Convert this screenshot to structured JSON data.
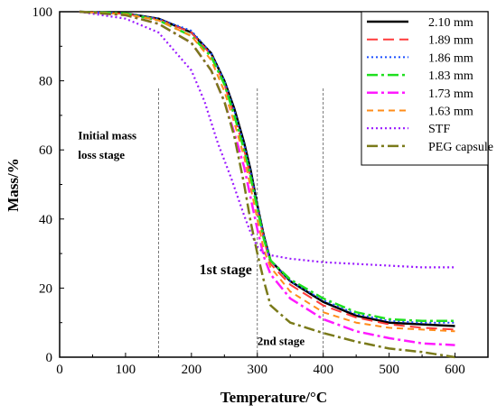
{
  "chart_data": {
    "type": "line",
    "xlabel": "Temperature/°C",
    "ylabel": "Mass/%",
    "xlim": [
      0,
      650
    ],
    "ylim": [
      0,
      100
    ],
    "xticks": [
      0,
      100,
      200,
      300,
      400,
      500,
      600
    ],
    "yticks": [
      0,
      20,
      40,
      60,
      80,
      100
    ],
    "legend_position": "top-right",
    "series": [
      {
        "name": "2.10 mm",
        "color": "#000000",
        "dash": "solid",
        "width": 2.5,
        "x": [
          30,
          100,
          150,
          200,
          230,
          250,
          265,
          280,
          290,
          300,
          310,
          320,
          350,
          400,
          450,
          500,
          550,
          600
        ],
        "y": [
          100,
          99.5,
          98,
          94,
          88,
          80,
          72,
          62,
          54,
          44,
          35,
          28,
          22,
          16,
          12,
          10,
          9.5,
          9
        ]
      },
      {
        "name": "1.89 mm",
        "color": "#ff3b3b",
        "dash": "12,6",
        "width": 2,
        "x": [
          30,
          100,
          150,
          200,
          230,
          250,
          265,
          280,
          290,
          300,
          310,
          320,
          350,
          400,
          450,
          500,
          550,
          600
        ],
        "y": [
          100,
          99.4,
          97.8,
          94,
          87.5,
          79,
          70,
          60,
          52,
          43,
          34,
          27,
          21,
          15,
          11.5,
          9.5,
          8.5,
          8
        ]
      },
      {
        "name": "1.86 mm",
        "color": "#1a4fff",
        "dash": "2,3",
        "width": 2,
        "x": [
          30,
          100,
          150,
          200,
          230,
          250,
          265,
          280,
          290,
          300,
          310,
          320,
          350,
          400,
          450,
          500,
          550,
          600
        ],
        "y": [
          100,
          99.5,
          98,
          94.5,
          88,
          80,
          71.5,
          61.5,
          53.5,
          44,
          35,
          28,
          22,
          16.5,
          12.5,
          10.5,
          10,
          10
        ]
      },
      {
        "name": "1.83 mm",
        "color": "#1fe01f",
        "dash": "12,4,3,4",
        "width": 2.5,
        "x": [
          30,
          100,
          150,
          200,
          230,
          250,
          265,
          280,
          290,
          300,
          310,
          320,
          350,
          400,
          450,
          500,
          550,
          600
        ],
        "y": [
          100,
          99.5,
          97.5,
          93,
          87,
          79,
          70,
          60,
          52,
          43,
          34,
          28,
          22.5,
          17,
          13,
          11,
          10.5,
          10.5
        ]
      },
      {
        "name": "1.73 mm",
        "color": "#ff1aff",
        "dash": "12,4,3,4",
        "width": 2.5,
        "x": [
          30,
          100,
          150,
          200,
          230,
          250,
          265,
          280,
          290,
          300,
          310,
          320,
          350,
          400,
          450,
          500,
          550,
          600
        ],
        "y": [
          100,
          99,
          96.5,
          91,
          83,
          74,
          65,
          55,
          46,
          37,
          29,
          24,
          17,
          11,
          7.5,
          5.5,
          4,
          3.5
        ]
      },
      {
        "name": "1.63 mm",
        "color": "#ff8c1a",
        "dash": "7,5",
        "width": 2,
        "x": [
          30,
          100,
          150,
          200,
          230,
          250,
          265,
          280,
          290,
          300,
          310,
          320,
          350,
          400,
          450,
          500,
          550,
          600
        ],
        "y": [
          100,
          99.3,
          97.5,
          93,
          86,
          77,
          68,
          58,
          49,
          40,
          31,
          26,
          19,
          13,
          10,
          8.5,
          8,
          7.5
        ]
      },
      {
        "name": "STF",
        "color": "#9a1aff",
        "dash": "2,3",
        "width": 2.2,
        "x": [
          30,
          100,
          150,
          200,
          220,
          240,
          260,
          280,
          290,
          300,
          310,
          320,
          350,
          400,
          450,
          500,
          550,
          600
        ],
        "y": [
          100,
          98,
          94,
          83,
          74,
          62,
          52,
          41,
          36,
          32,
          30,
          29.5,
          28.5,
          27.5,
          27,
          26.5,
          26,
          26
        ]
      },
      {
        "name": "PEG capsule",
        "color": "#7a7a1a",
        "dash": "12,4,3,4",
        "width": 2.5,
        "x": [
          30,
          100,
          150,
          200,
          230,
          250,
          265,
          280,
          290,
          300,
          310,
          320,
          350,
          400,
          450,
          500,
          550,
          600
        ],
        "y": [
          100,
          99,
          96.5,
          91,
          83,
          74,
          64,
          50,
          39,
          30,
          22,
          15,
          10,
          7,
          4.5,
          2.5,
          1.5,
          0
        ]
      }
    ],
    "annotations": [
      {
        "text": "Initial mass",
        "x": 28,
        "y": 63
      },
      {
        "text": "loss stage",
        "x": 28,
        "y": 57.5
      },
      {
        "text": "1st stage",
        "x": 212,
        "y": 24
      },
      {
        "text": "2nd stage",
        "x": 300,
        "y": 3.5
      }
    ],
    "guide_lines_x": [
      150,
      300,
      400
    ]
  }
}
